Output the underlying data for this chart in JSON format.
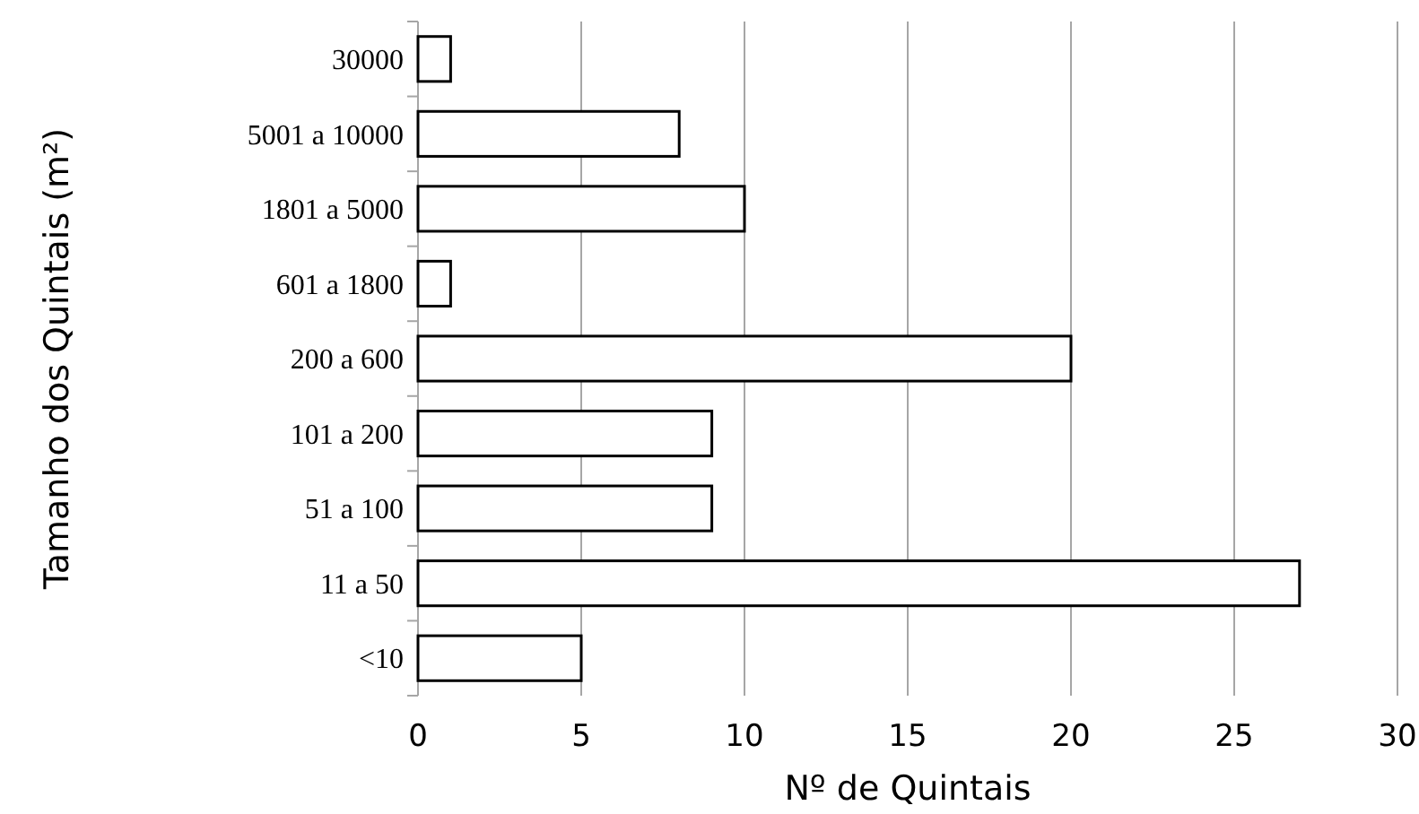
{
  "chart_data": {
    "type": "bar",
    "orientation": "horizontal",
    "xlabel": "Nº de Quintais",
    "ylabel": "Tamanho dos Quintais  (m²)",
    "categories": [
      "30000",
      "5001 a 10000",
      "1801 a 5000",
      "601 a 1800",
      "200 a 600",
      "101 a 200",
      "51 a 100",
      "11 a 50",
      "<10"
    ],
    "values": [
      1,
      8,
      10,
      1,
      20,
      9,
      9,
      27,
      5
    ],
    "color": "#ffffff",
    "xlim": [
      0,
      30
    ],
    "xticks": [
      0,
      5,
      10,
      15,
      20,
      25,
      30
    ],
    "grid": "x"
  }
}
